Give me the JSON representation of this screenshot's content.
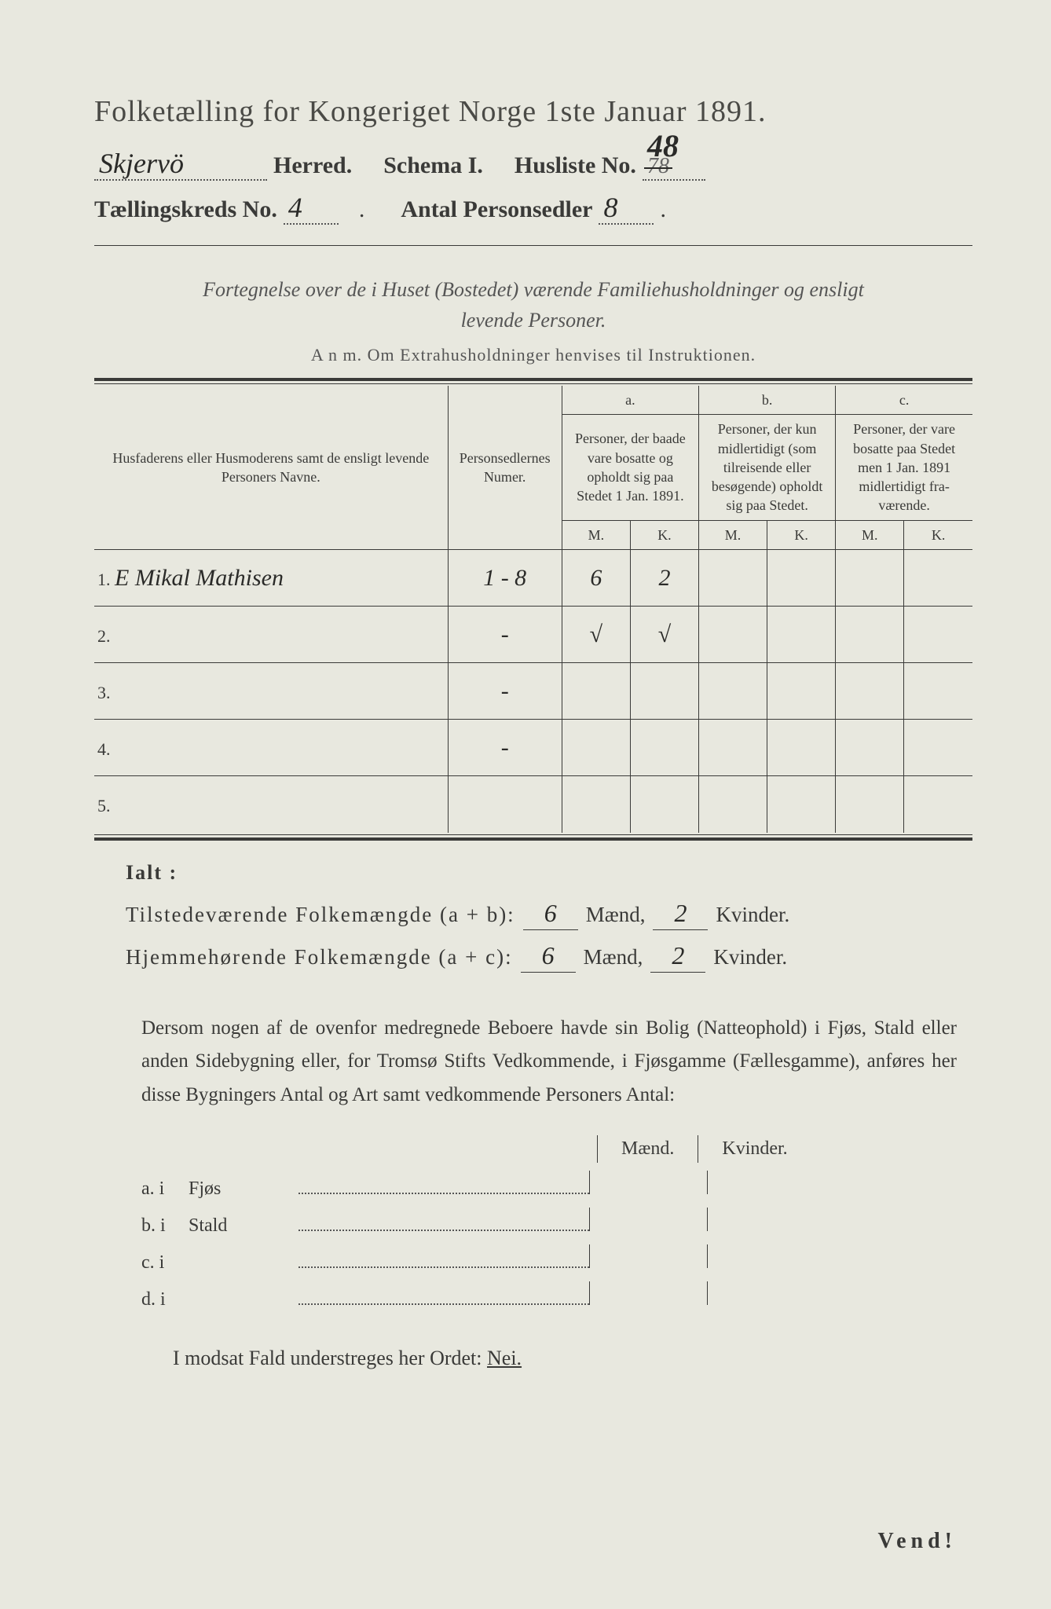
{
  "colors": {
    "paper": "#e8e8df",
    "ink": "#3a3a38",
    "hand": "#2a2a28",
    "bg": "#d8d9d4"
  },
  "title": "Folketælling for Kongeriget Norge 1ste Januar 1891.",
  "header": {
    "herred_value": "Skjervö",
    "herred_label": "Herred.",
    "schema_label": "Schema I.",
    "husliste_label": "Husliste No.",
    "husliste_struck": "78",
    "husliste_value": "48",
    "kreds_label": "Tællingskreds No.",
    "kreds_value": "4",
    "antal_label": "Antal Personsedler",
    "antal_value": "8"
  },
  "subheading_l1": "Fortegnelse over de i Huset (Bostedet) værende Familiehusholdninger og ensligt",
  "subheading_l2": "levende Personer.",
  "anm": "A n m.  Om Extrahusholdninger henvises til Instruktionen.",
  "table": {
    "col_names": "Husfaderens eller Husmode­rens samt de ensligt levende Personers Navne.",
    "col_numer": "Person­sedler­nes Numer.",
    "col_a_label": "a.",
    "col_a": "Personer, der baade vare bo­satte og opholdt sig paa Stedet 1 Jan. 1891.",
    "col_b_label": "b.",
    "col_b": "Personer, der kun midler­tidigt (som tilreisende eller besøgende) opholdt sig paa Stedet.",
    "col_c_label": "c.",
    "col_c": "Personer, der vare bosatte paa Stedet men 1 Jan. 1891 midler­tidigt fra­værende.",
    "mk_m": "M.",
    "mk_k": "K.",
    "rows": [
      {
        "n": "1.",
        "name": "E Mikal Mathisen",
        "numer": "1 - 8",
        "a_m": "6",
        "a_k": "2",
        "b_m": "",
        "b_k": "",
        "c_m": "",
        "c_k": ""
      },
      {
        "n": "2.",
        "name": "",
        "numer": "-",
        "a_m": "√",
        "a_k": "√",
        "b_m": "",
        "b_k": "",
        "c_m": "",
        "c_k": ""
      },
      {
        "n": "3.",
        "name": "",
        "numer": "-",
        "a_m": "",
        "a_k": "",
        "b_m": "",
        "b_k": "",
        "c_m": "",
        "c_k": ""
      },
      {
        "n": "4.",
        "name": "",
        "numer": "-",
        "a_m": "",
        "a_k": "",
        "b_m": "",
        "b_k": "",
        "c_m": "",
        "c_k": ""
      },
      {
        "n": "5.",
        "name": "",
        "numer": "",
        "a_m": "",
        "a_k": "",
        "b_m": "",
        "b_k": "",
        "c_m": "",
        "c_k": ""
      }
    ]
  },
  "ialt": "Ialt :",
  "totals": {
    "present_label": "Tilstedeværende Folkemængde (a + b):",
    "present_m": "6",
    "present_k": "2",
    "resident_label": "Hjemmehørende Folkemængde (a + c):",
    "resident_m": "6",
    "resident_k": "2",
    "maend": "Mænd,",
    "kvinder": "Kvinder."
  },
  "paragraph": "Dersom nogen af de ovenfor medregnede Beboere havde sin Bolig (Natte­ophold) i Fjøs, Stald eller anden Sidebygning eller, for Tromsø Stifts Ved­kommende, i Fjøsgamme (Fællesgamme), anføres her disse Bygningers Antal og Art samt vedkommende Personers Antal:",
  "mk_labels": {
    "m": "Mænd.",
    "k": "Kvinder."
  },
  "buildings": [
    {
      "lbl": "a.  i",
      "name": "Fjøs"
    },
    {
      "lbl": "b.  i",
      "name": "Stald"
    },
    {
      "lbl": "c.  i",
      "name": ""
    },
    {
      "lbl": "d.  i",
      "name": ""
    }
  ],
  "nei_line_pre": "I modsat Fald understreges her Ordet: ",
  "nei": "Nei.",
  "vend": "Vend!"
}
